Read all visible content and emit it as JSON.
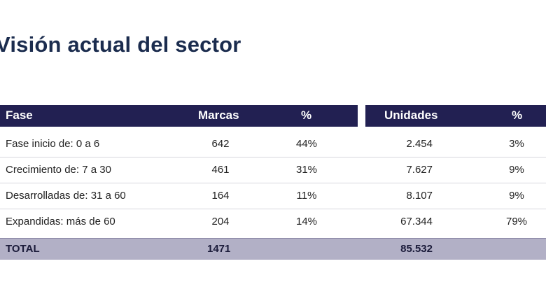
{
  "title": "Visión actual del sector",
  "table": {
    "headers": {
      "fase": "Fase",
      "marcas": "Marcas",
      "pct_marcas": "%",
      "unidades": "Unidades",
      "pct_unidades": "%"
    },
    "rows": [
      {
        "fase": "Fase inicio de: 0 a 6",
        "marcas": "642",
        "pct_marcas": "44%",
        "unidades": "2.454",
        "pct_unidades": "3%"
      },
      {
        "fase": "Crecimiento de: 7 a 30",
        "marcas": "461",
        "pct_marcas": "31%",
        "unidades": "7.627",
        "pct_unidades": "9%"
      },
      {
        "fase": "Desarrolladas de: 31 a 60",
        "marcas": "164",
        "pct_marcas": "11%",
        "unidades": "8.107",
        "pct_unidades": "9%"
      },
      {
        "fase": "Expandidas: más de 60",
        "marcas": "204",
        "pct_marcas": "14%",
        "unidades": "67.344",
        "pct_unidades": "79%"
      }
    ],
    "total": {
      "label": "TOTAL",
      "marcas": "1471",
      "unidades": "85.532"
    }
  },
  "colors": {
    "header_bg": "#222052",
    "total_bg": "#b2b0c6",
    "title": "#1b2c4e"
  }
}
